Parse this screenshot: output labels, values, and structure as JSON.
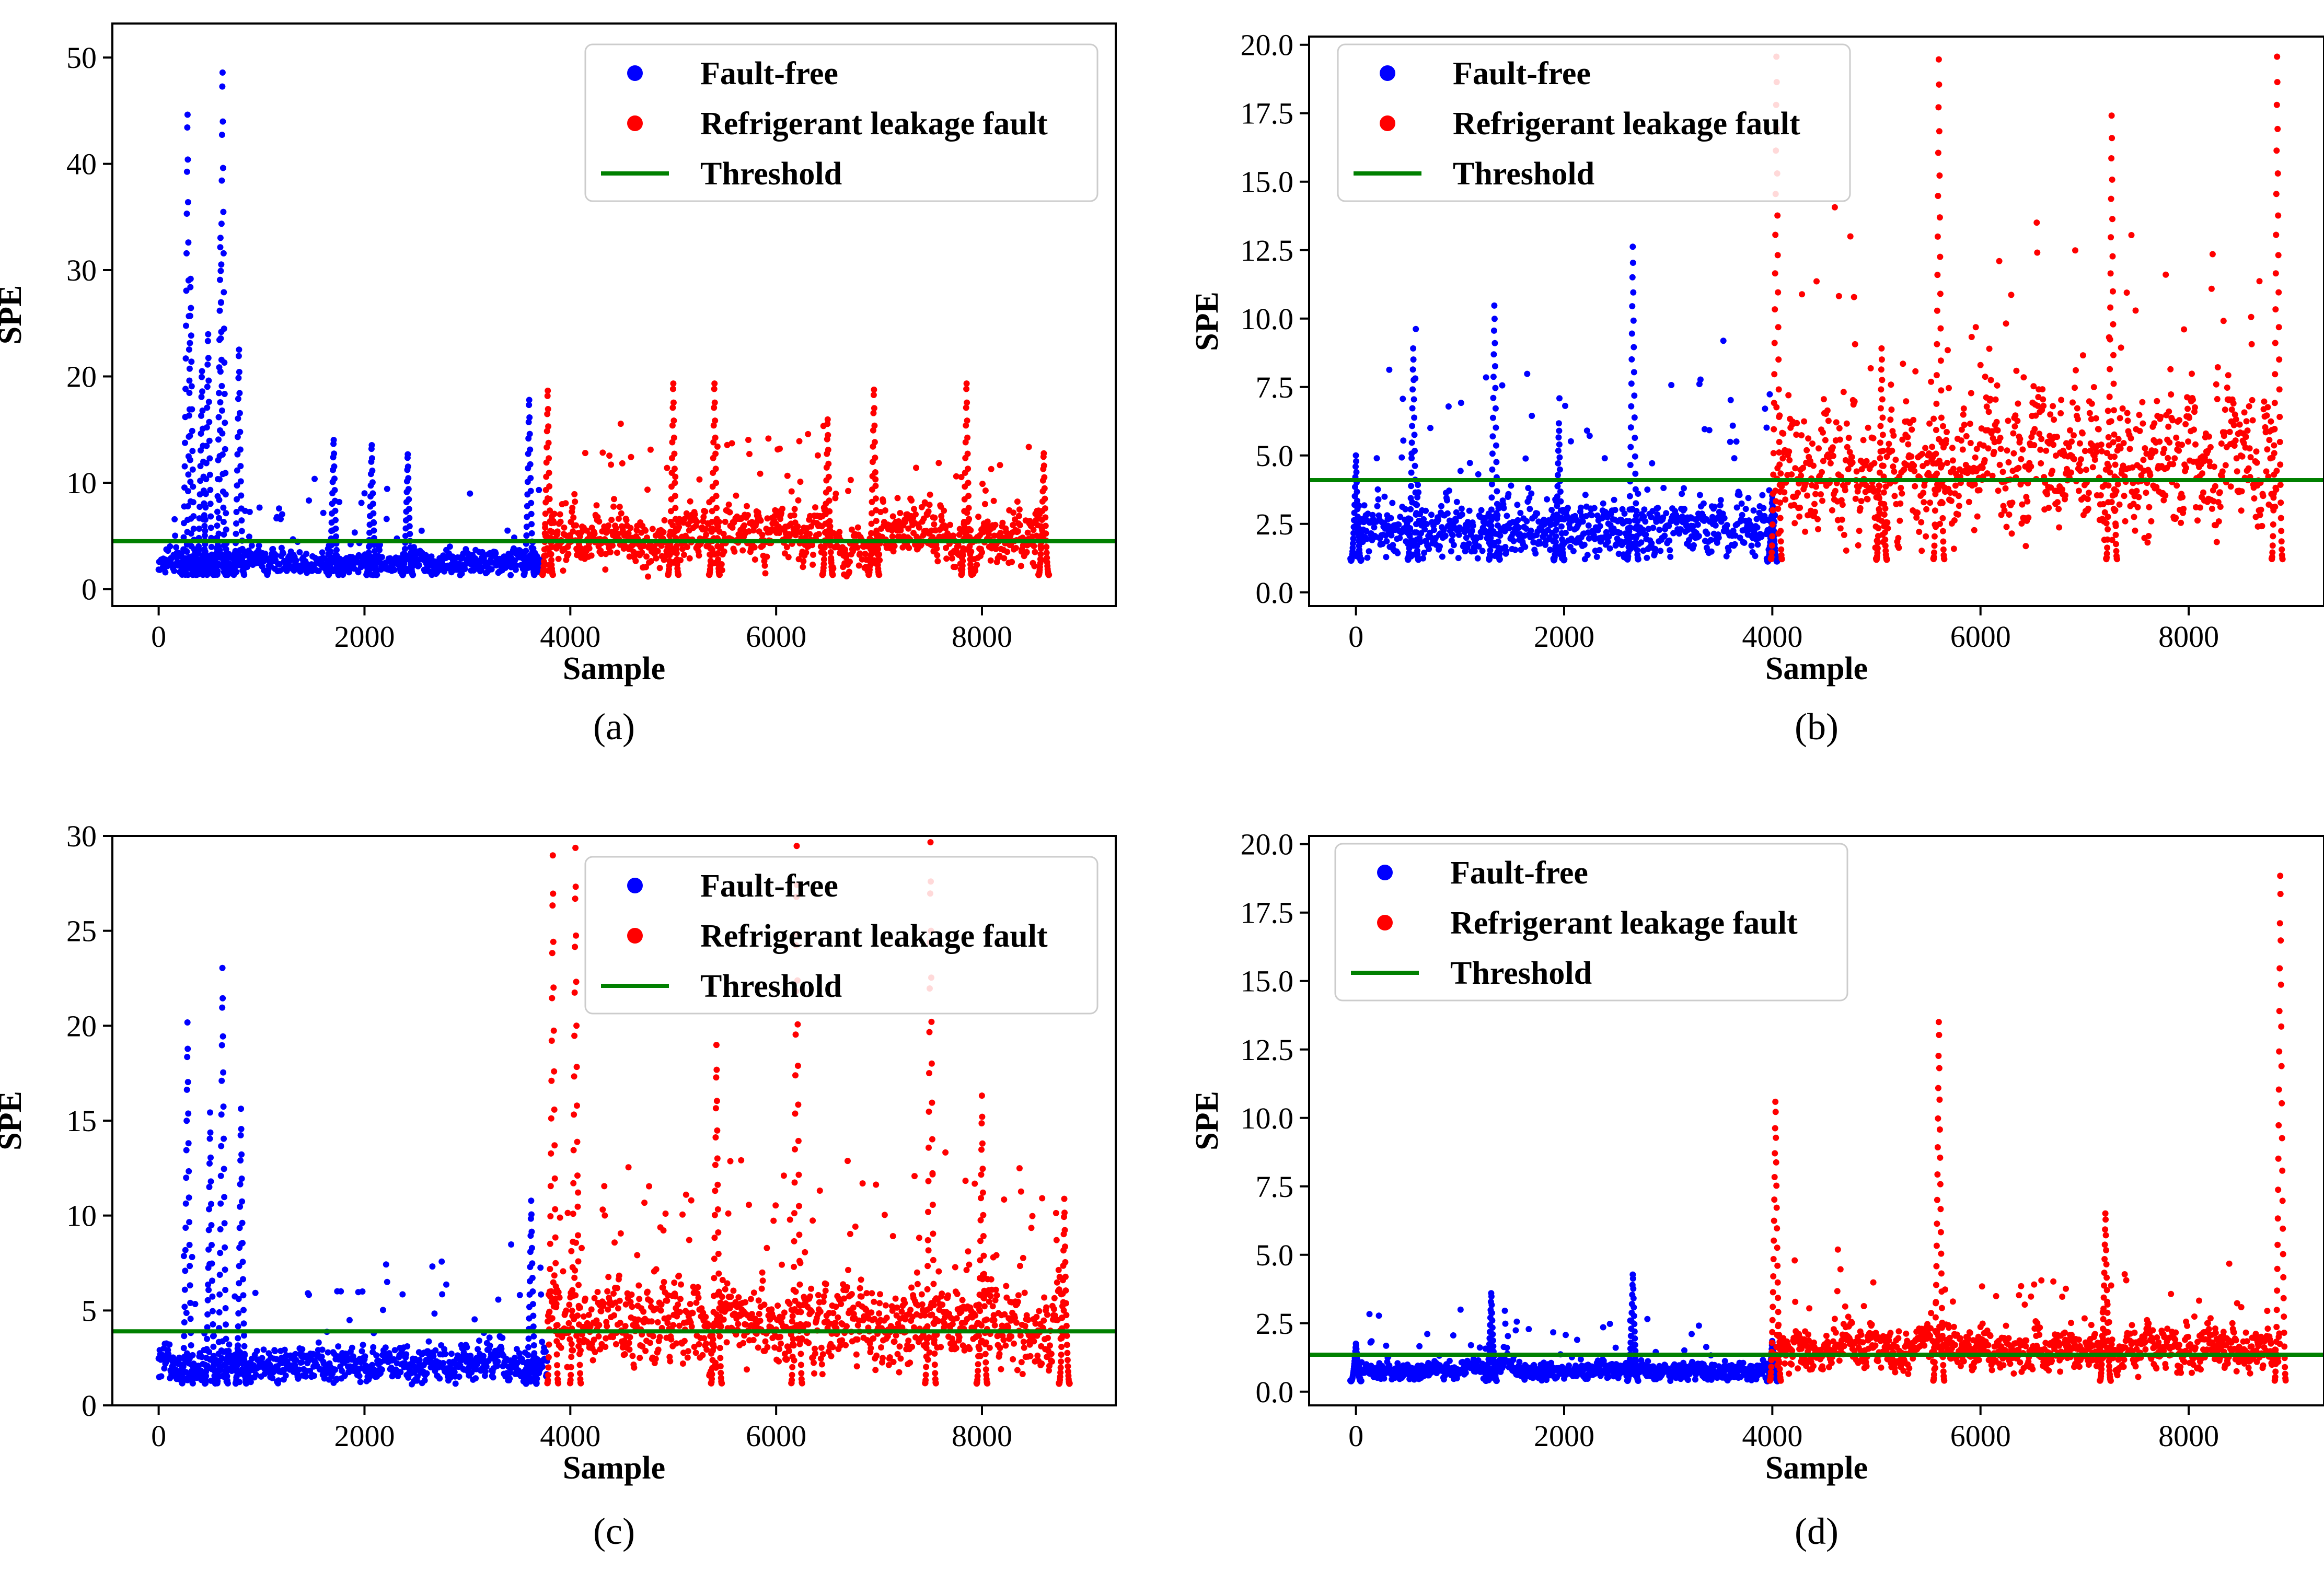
{
  "colors": {
    "fault_free": "#0000ff",
    "fault": "#ff0000",
    "threshold": "#008000",
    "axis": "#000000",
    "legend_border": "#cccccc"
  },
  "legend_labels": {
    "fault_free": "Fault-free",
    "fault": "Refrigerant leakage fault",
    "threshold": "Threshold"
  },
  "chart_data": [
    {
      "panel": "a",
      "caption": "(a)",
      "type": "scatter",
      "xlabel": "Sample",
      "ylabel": "SPE",
      "xlim": [
        -450,
        9300
      ],
      "ylim": [
        -1.6,
        53.2
      ],
      "xticks": [
        0,
        2000,
        4000,
        6000,
        8000
      ],
      "yticks": [
        0,
        10,
        20,
        30,
        40,
        50
      ],
      "tick_labels_x": [
        "0",
        "2000",
        "4000",
        "6000",
        "8000"
      ],
      "tick_labels_y": [
        "0",
        "10",
        "20",
        "30",
        "40",
        "50"
      ],
      "threshold": 4.5,
      "n_fault_free": 3750,
      "n_total": 8600,
      "fault_free_peaks": [
        [
          280,
          46.2
        ],
        [
          620,
          50.3
        ],
        [
          310,
          30.2
        ],
        [
          600,
          34.2
        ],
        [
          480,
          24.8
        ],
        [
          780,
          23.3
        ],
        [
          420,
          21.2
        ],
        [
          1700,
          14.5
        ],
        [
          2070,
          14
        ],
        [
          2420,
          13.1
        ],
        [
          3600,
          18.4
        ]
      ],
      "fault_peaks": [
        [
          3780,
          19.3
        ],
        [
          5000,
          20
        ],
        [
          5400,
          20
        ],
        [
          6500,
          16.5
        ],
        [
          6950,
          19.4
        ],
        [
          7850,
          20
        ],
        [
          8600,
          13.2
        ]
      ],
      "legend_position": "upper right"
    },
    {
      "panel": "b",
      "caption": "(b)",
      "type": "scatter",
      "xlabel": "Sample",
      "ylabel": "SPE",
      "xlim": [
        -450,
        9300
      ],
      "ylim": [
        -0.5,
        20.3
      ],
      "xticks": [
        0,
        2000,
        4000,
        6000,
        8000
      ],
      "yticks": [
        0,
        2.5,
        5,
        7.5,
        10,
        12.5,
        15,
        17.5,
        20
      ],
      "tick_labels_x": [
        "0",
        "2000",
        "4000",
        "6000",
        "8000"
      ],
      "tick_labels_y": [
        "0.0",
        "2.5",
        "5.0",
        "7.5",
        "10.0",
        "12.5",
        "15.0",
        "17.5",
        "20.0"
      ],
      "threshold": 4.1,
      "n_fault_free": 4030,
      "n_total": 8850,
      "fault_free_peaks": [
        [
          0,
          5.1
        ],
        [
          550,
          9.1
        ],
        [
          1330,
          10.7
        ],
        [
          1950,
          6.3
        ],
        [
          2660,
          12.9
        ],
        [
          4000,
          3.6
        ]
      ],
      "fault_peaks": [
        [
          4040,
          20
        ],
        [
          5050,
          9.1
        ],
        [
          5600,
          19.9
        ],
        [
          7260,
          17.8
        ],
        [
          8850,
          20
        ]
      ],
      "legend_position": "upper left"
    },
    {
      "panel": "c",
      "caption": "(c)",
      "type": "scatter",
      "xlabel": "Sample",
      "ylabel": "SPE",
      "xlim": [
        -450,
        9300
      ],
      "ylim": [
        0,
        30
      ],
      "xticks": [
        0,
        2000,
        4000,
        6000,
        8000
      ],
      "yticks": [
        0,
        5,
        10,
        15,
        20,
        25,
        30
      ],
      "tick_labels_x": [
        "0",
        "2000",
        "4000",
        "6000",
        "8000"
      ],
      "tick_labels_y": [
        "0",
        "5",
        "10",
        "15",
        "20",
        "25",
        "30"
      ],
      "threshold": 3.9,
      "n_fault_free": 3780,
      "n_total": 8800,
      "fault_free_peaks": [
        [
          280,
          20.4
        ],
        [
          620,
          23.3
        ],
        [
          500,
          15.6
        ],
        [
          800,
          15.8
        ],
        [
          3620,
          10.9
        ]
      ],
      "fault_peaks": [
        [
          3830,
          29.3
        ],
        [
          4050,
          29.7
        ],
        [
          5420,
          19.2
        ],
        [
          6200,
          29.8
        ],
        [
          7500,
          30
        ],
        [
          8000,
          16.5
        ],
        [
          8800,
          11
        ]
      ],
      "legend_position": "upper right"
    },
    {
      "panel": "d",
      "caption": "(d)",
      "type": "scatter",
      "xlabel": "Sample",
      "ylabel": "SPE",
      "xlim": [
        -450,
        9300
      ],
      "ylim": [
        -0.5,
        20.3
      ],
      "xticks": [
        0,
        2000,
        4000,
        6000,
        8000
      ],
      "yticks": [
        0,
        2.5,
        5,
        7.5,
        10,
        12.5,
        15,
        17.5,
        20
      ],
      "tick_labels_x": [
        "0",
        "2000",
        "4000",
        "6000",
        "8000"
      ],
      "tick_labels_y": [
        "0.0",
        "2.5",
        "5.0",
        "7.5",
        "10.0",
        "12.5",
        "15.0",
        "17.5",
        "20.0"
      ],
      "threshold": 1.35,
      "n_fault_free": 4030,
      "n_total": 8880,
      "fault_free_peaks": [
        [
          0,
          1.8
        ],
        [
          1300,
          3.7
        ],
        [
          2660,
          4.4
        ],
        [
          4000,
          1.9
        ]
      ],
      "fault_peaks": [
        [
          4030,
          10.9
        ],
        [
          5600,
          13.9
        ],
        [
          7200,
          6.7
        ],
        [
          8880,
          19.4
        ]
      ],
      "legend_position": "upper left"
    }
  ]
}
